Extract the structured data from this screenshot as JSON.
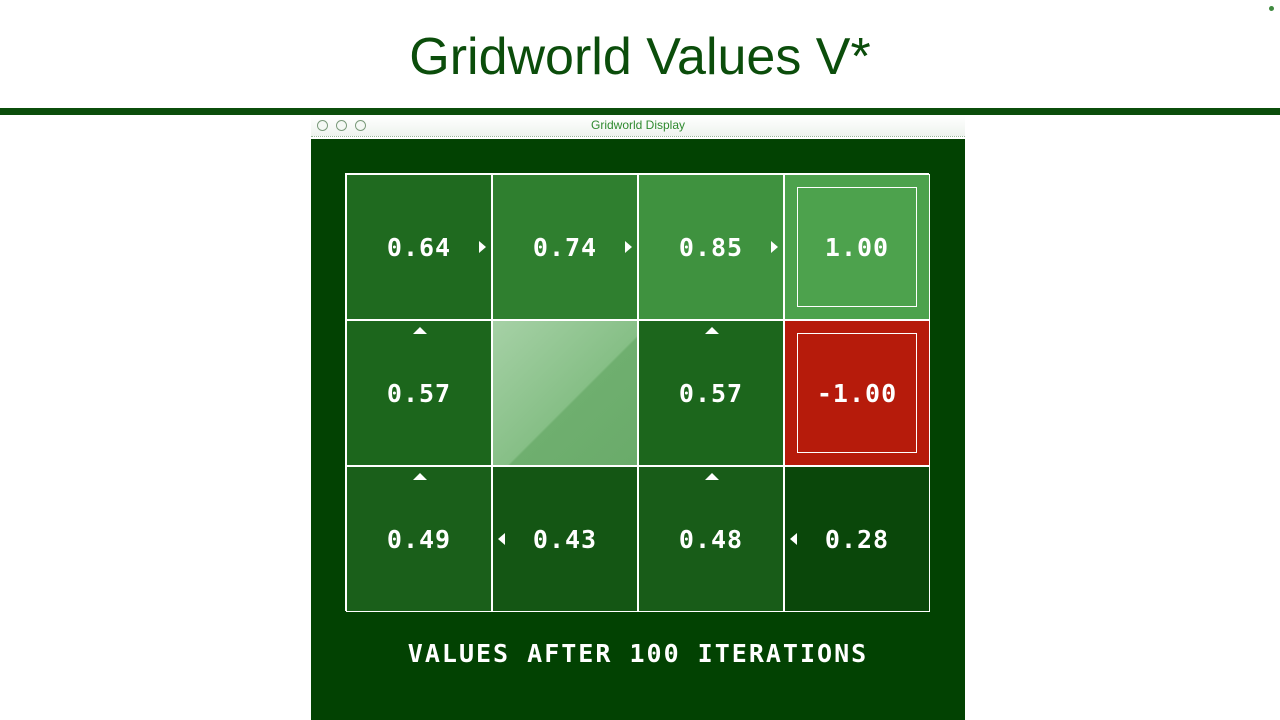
{
  "slide": {
    "title": "Gridworld Values V*"
  },
  "window": {
    "title": "Gridworld Display"
  },
  "grid": {
    "rows": [
      [
        {
          "value": "0.64",
          "arrow": "right",
          "fill": "#1f6a1f",
          "type": "normal"
        },
        {
          "value": "0.74",
          "arrow": "right",
          "fill": "#2f7f2f",
          "type": "normal"
        },
        {
          "value": "0.85",
          "arrow": "right",
          "fill": "#3f923f",
          "type": "normal"
        },
        {
          "value": "1.00",
          "arrow": "",
          "fill": "#4da24d",
          "type": "exit"
        }
      ],
      [
        {
          "value": "0.57",
          "arrow": "up",
          "fill": "#1c661c",
          "type": "normal"
        },
        {
          "value": "",
          "arrow": "",
          "fill": "#86bf86",
          "type": "wall"
        },
        {
          "value": "0.57",
          "arrow": "up",
          "fill": "#1c661c",
          "type": "normal"
        },
        {
          "value": "-1.00",
          "arrow": "",
          "fill": "#b61b0b",
          "type": "exit"
        }
      ],
      [
        {
          "value": "0.49",
          "arrow": "up",
          "fill": "#1a5f1a",
          "type": "normal"
        },
        {
          "value": "0.43",
          "arrow": "left",
          "fill": "#145614",
          "type": "normal"
        },
        {
          "value": "0.48",
          "arrow": "up",
          "fill": "#185c18",
          "type": "normal"
        },
        {
          "value": "0.28",
          "arrow": "left",
          "fill": "#0a470a",
          "type": "normal"
        }
      ]
    ]
  },
  "caption": "VALUES AFTER 100 ITERATIONS",
  "colors": {
    "brand_green": "#0b4d0b",
    "canvas_bg": "#024202",
    "negative_exit": "#b61b0b"
  },
  "icons": {
    "right": "arrow-right-icon",
    "left": "arrow-left-icon",
    "up": "arrow-up-icon"
  }
}
